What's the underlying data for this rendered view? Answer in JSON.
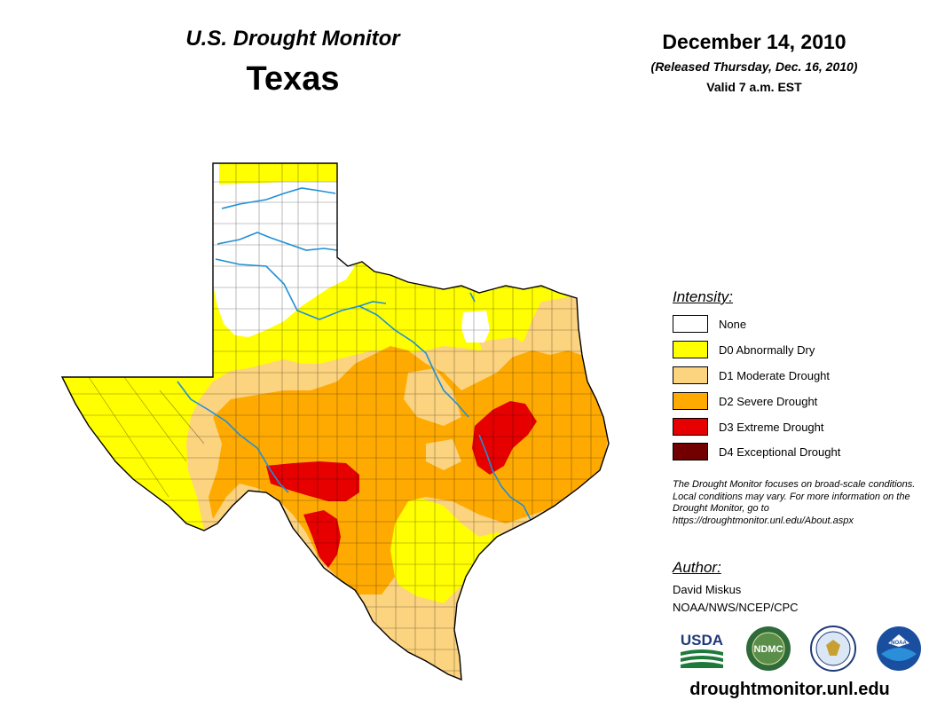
{
  "header": {
    "product": "U.S. Drought Monitor",
    "state": "Texas",
    "date": "December 14, 2010",
    "released": "(Released Thursday, Dec. 16, 2010)",
    "valid": "Valid 7 a.m. EST"
  },
  "legend": {
    "heading": "Intensity:",
    "items": [
      {
        "label": "None",
        "color": "#ffffff"
      },
      {
        "label": "D0 Abnormally Dry",
        "color": "#ffff00"
      },
      {
        "label": "D1 Moderate Drought",
        "color": "#fcd37f"
      },
      {
        "label": "D2 Severe Drought",
        "color": "#ffaa00"
      },
      {
        "label": "D3 Extreme Drought",
        "color": "#e60000"
      },
      {
        "label": "D4 Exceptional Drought",
        "color": "#730000"
      }
    ]
  },
  "note": "The Drought Monitor focuses on broad-scale conditions. Local conditions may vary. For more information on the Drought Monitor, go to https://droughtmonitor.unl.edu/About.aspx",
  "author": {
    "heading": "Author:",
    "name": "David Miskus",
    "org": "NOAA/NWS/NCEP/CPC"
  },
  "logos": {
    "usda": "USDA",
    "ndmc": "NDMC",
    "noaa": "NOAA"
  },
  "website": "droughtmonitor.unl.edu"
}
